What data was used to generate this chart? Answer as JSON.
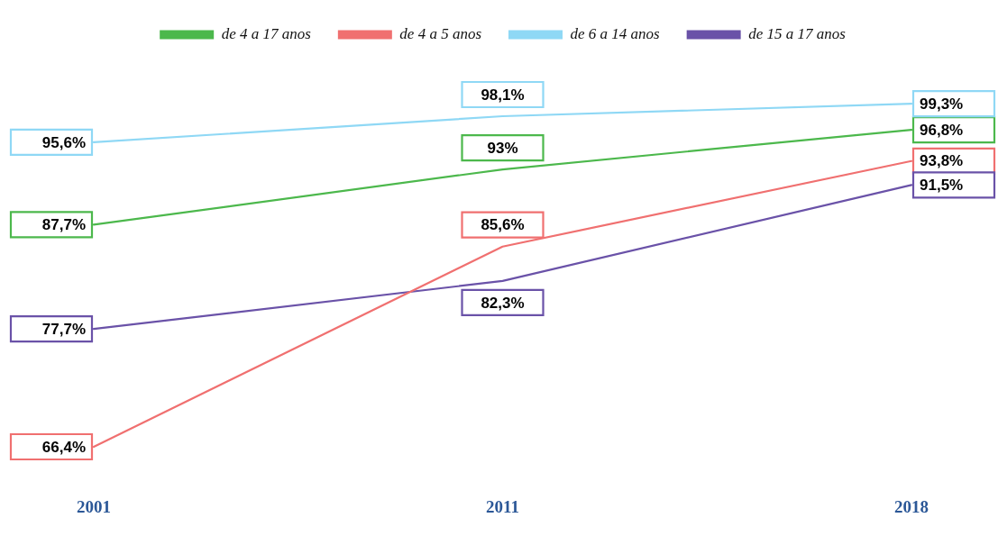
{
  "chart_data": {
    "type": "line",
    "categories": [
      "2001",
      "2011",
      "2018"
    ],
    "series": [
      {
        "name": "de 4 a 17 anos",
        "color": "#4cb84c",
        "values": [
          87.7,
          93,
          96.8
        ],
        "value_labels": [
          "87,7%",
          "93%",
          "96,8%"
        ]
      },
      {
        "name": "de 4 a 5 anos",
        "color": "#f07070",
        "values": [
          66.4,
          85.6,
          93.8
        ],
        "value_labels": [
          "66,4%",
          "85,6%",
          "93,8%"
        ]
      },
      {
        "name": "de 6 a 14 anos",
        "color": "#8fd8f5",
        "values": [
          95.6,
          98.1,
          99.3
        ],
        "value_labels": [
          "95,6%",
          "98,1%",
          "99,3%"
        ]
      },
      {
        "name": "de 15 a 17 anos",
        "color": "#6a52a8",
        "values": [
          77.7,
          82.3,
          91.5
        ],
        "value_labels": [
          "77,7%",
          "82,3%",
          "91,5%"
        ]
      }
    ],
    "tick_labels": "x",
    "grid": false,
    "legend": "top",
    "line_style": "solid"
  }
}
